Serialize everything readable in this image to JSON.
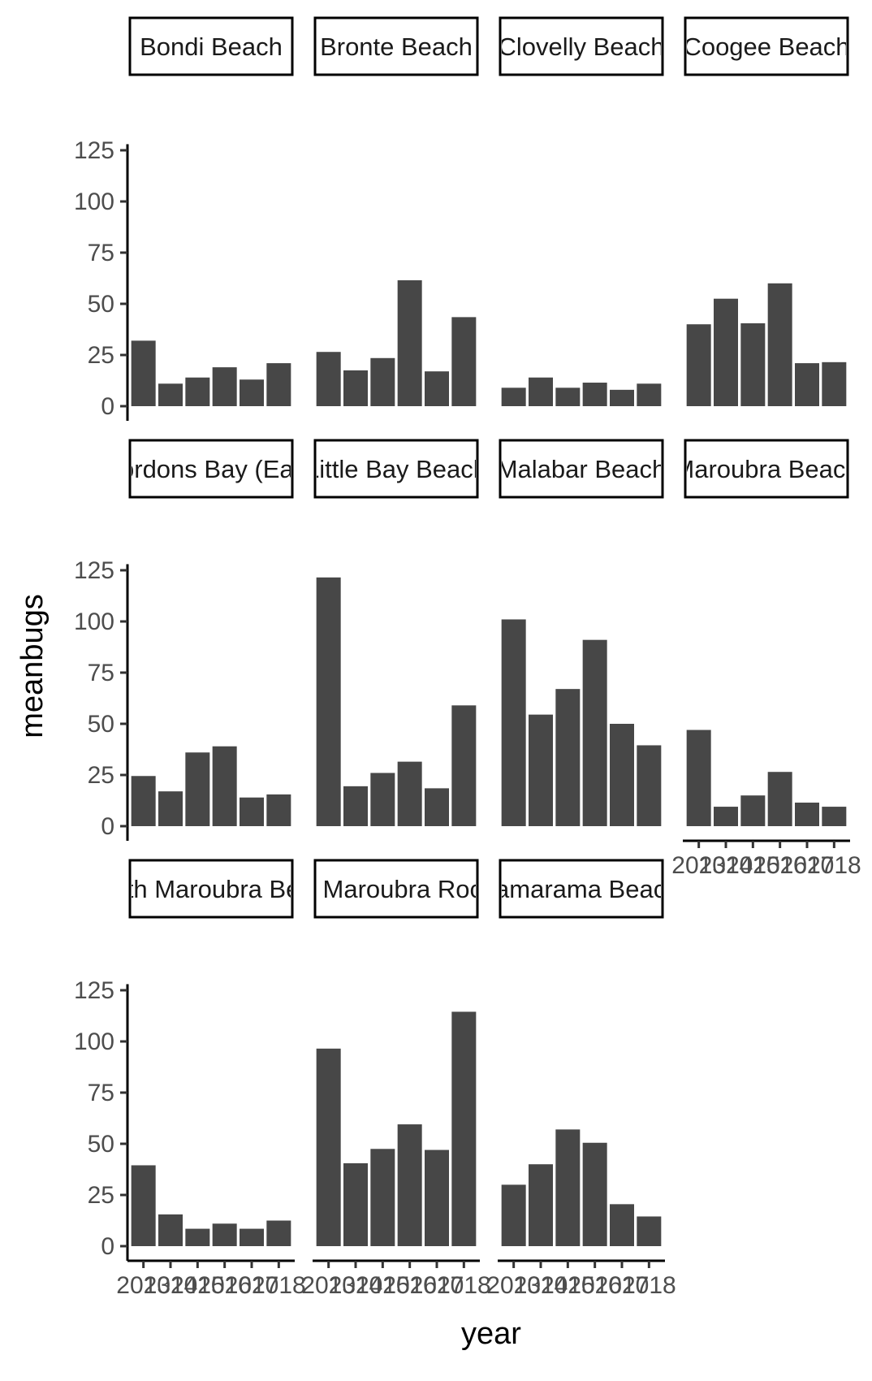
{
  "chart_data": {
    "type": "bar",
    "xlabel": "year",
    "ylabel": "meanbugs",
    "ylim": [
      0,
      128
    ],
    "y_ticks": [
      "0",
      "25",
      "50",
      "75",
      "100",
      "125"
    ],
    "x_tick_labels": [
      "2013",
      "2014",
      "2015",
      "2016",
      "2017",
      "2018"
    ],
    "categories": [
      "2013",
      "2014",
      "2015",
      "2016",
      "2017",
      "2018"
    ],
    "bar_color": "#474747",
    "facet_layout": "wrap, 4 columns, 3 rows, shared axes",
    "grid": false,
    "legend": "none",
    "panels": [
      {
        "label": "Bondi Beach",
        "values": [
          32,
          11,
          14,
          19,
          13,
          21
        ]
      },
      {
        "label": "Bronte Beach",
        "values": [
          26.5,
          17.5,
          23.5,
          61.5,
          17,
          43.5
        ]
      },
      {
        "label": "Clovelly Beach",
        "values": [
          9,
          14,
          9,
          11.5,
          8,
          11
        ]
      },
      {
        "label": "Coogee Beach",
        "values": [
          40,
          52.5,
          40.5,
          60,
          21,
          21.5
        ]
      },
      {
        "label": "Gordons Bay (East)",
        "values": [
          24.5,
          17,
          36,
          39,
          14,
          15.5
        ]
      },
      {
        "label": "Little Bay Beach",
        "values": [
          121.5,
          19.5,
          26,
          31.5,
          18.5,
          59
        ]
      },
      {
        "label": "Malabar Beach",
        "values": [
          101,
          54.5,
          67,
          91,
          50,
          39.5
        ]
      },
      {
        "label": "Maroubra Beach",
        "values": [
          47,
          9.5,
          15,
          26.5,
          11.5,
          9.5
        ]
      },
      {
        "label": "South Maroubra Beach",
        "values": [
          39.5,
          15.5,
          8.5,
          11,
          8.5,
          12.5
        ]
      },
      {
        "label": "South Maroubra Rockpool",
        "values": [
          96.5,
          40.5,
          47.5,
          59.5,
          47,
          114.5
        ]
      },
      {
        "label": "Tamarama Beach",
        "values": [
          30,
          40,
          57,
          50.5,
          20.5,
          14.5
        ]
      }
    ]
  }
}
